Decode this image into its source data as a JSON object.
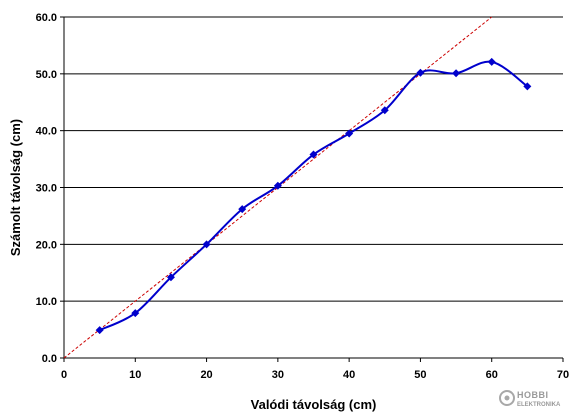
{
  "chart_data": {
    "type": "line",
    "title": "",
    "xlabel": "Valódi távolság (cm)",
    "ylabel": "Számolt távolság (cm)",
    "xlim": [
      0,
      70
    ],
    "ylim": [
      0,
      60
    ],
    "x_ticks": [
      "0",
      "10",
      "20",
      "30",
      "40",
      "50",
      "60",
      "70"
    ],
    "y_ticks": [
      "0.0",
      "10.0",
      "20.0",
      "30.0",
      "40.0",
      "50.0",
      "60.0"
    ],
    "grid": "horizontal",
    "legend": "none",
    "series": [
      {
        "x": [
          5,
          10,
          15,
          20,
          25,
          30,
          35,
          40,
          45,
          50,
          55,
          60,
          65
        ],
        "y": [
          4.9,
          7.9,
          14.2,
          20.0,
          26.2,
          30.3,
          35.8,
          39.5,
          43.6,
          50.2,
          50.1,
          52.1,
          47.8
        ],
        "color": "#0000cc",
        "marker": "diamond",
        "smooth": true
      }
    ],
    "reference_line": {
      "x": [
        0,
        60
      ],
      "y": [
        0,
        60
      ],
      "color": "#cc0000",
      "style": "dashed"
    }
  },
  "watermark": {
    "main": "HOBBI",
    "sub": "ELEKTRONIKA"
  }
}
